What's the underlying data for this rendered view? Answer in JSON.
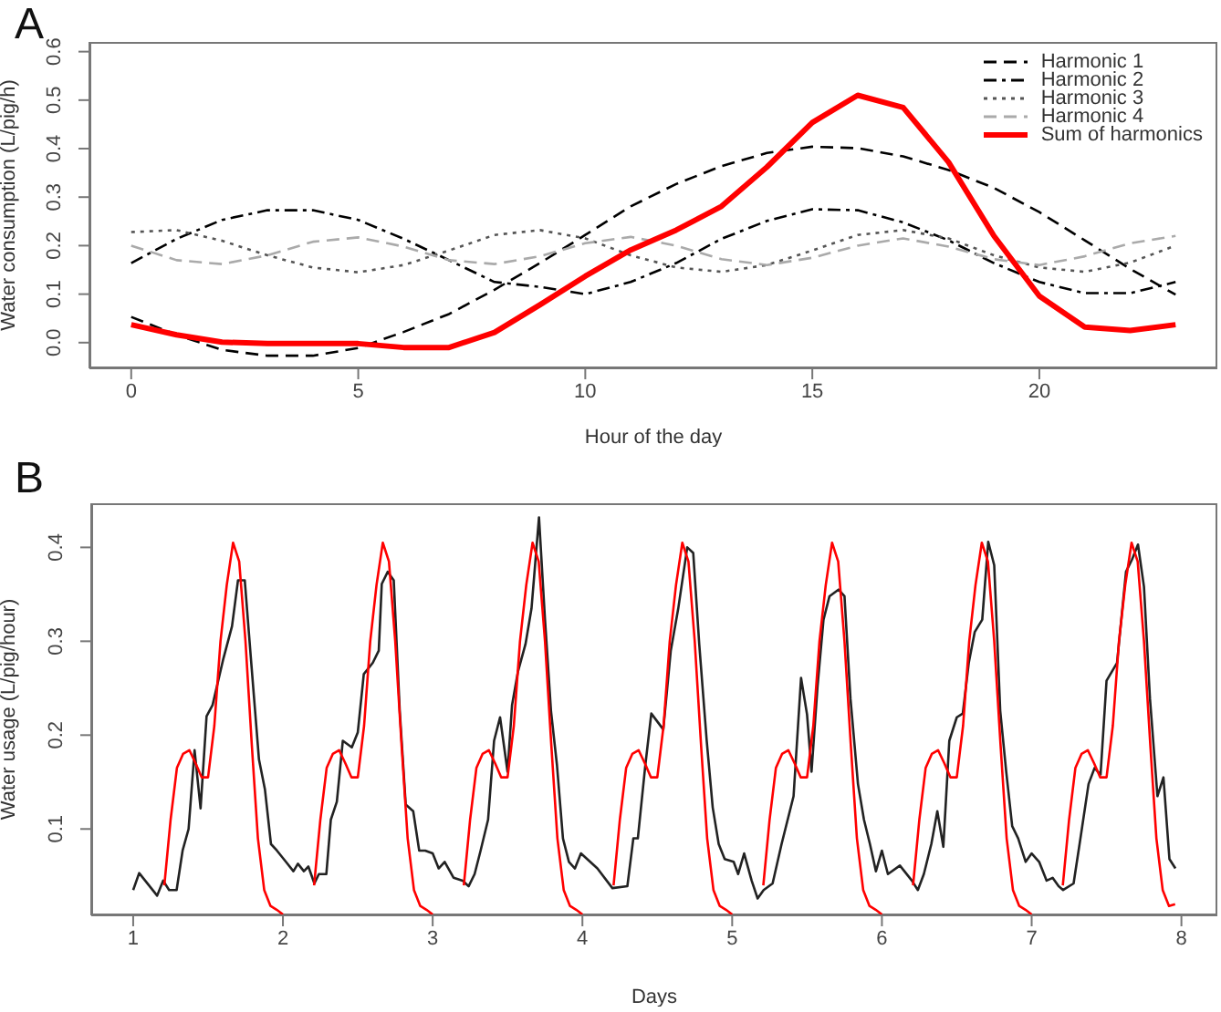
{
  "chart_data": [
    {
      "type": "line",
      "title": "A",
      "xlabel": "Hour of the day",
      "ylabel": "Water consumption (L/pig/h)",
      "x": [
        0,
        1,
        2,
        3,
        4,
        5,
        6,
        7,
        8,
        9,
        10,
        11,
        12,
        13,
        14,
        15,
        16,
        17,
        18,
        19,
        20,
        21,
        22,
        23
      ],
      "xlim": [
        -0.92,
        23.92
      ],
      "xticks": [
        0,
        5,
        10,
        15,
        20
      ],
      "ylim": [
        -0.053,
        0.62
      ],
      "yticks": [
        {
          "value": 0,
          "label": "0.0"
        },
        0.1,
        0.2,
        0.3,
        0.4,
        0.5,
        0.6
      ],
      "legend": "top right",
      "series": [
        {
          "name": "Harmonic 1",
          "color": "#000000",
          "line_style": "dashed",
          "values": [
            0.053,
            0.016,
            -0.015,
            -0.027,
            -0.027,
            -0.011,
            0.022,
            0.059,
            0.109,
            0.164,
            0.222,
            0.281,
            0.327,
            0.364,
            0.391,
            0.404,
            0.401,
            0.384,
            0.356,
            0.319,
            0.269,
            0.211,
            0.152,
            0.099
          ]
        },
        {
          "name": "Harmonic 2",
          "color": "#000000",
          "line_style": "dashdot",
          "values": [
            0.164,
            0.214,
            0.253,
            0.273,
            0.273,
            0.253,
            0.214,
            0.17,
            0.125,
            0.115,
            0.1,
            0.125,
            0.164,
            0.214,
            0.251,
            0.275,
            0.273,
            0.248,
            0.211,
            0.164,
            0.125,
            0.102,
            0.102,
            0.125
          ]
        },
        {
          "name": "Harmonic 3",
          "color": "#555555",
          "line_style": "dotted",
          "values": [
            0.228,
            0.232,
            0.21,
            0.18,
            0.155,
            0.145,
            0.16,
            0.19,
            0.222,
            0.232,
            0.215,
            0.18,
            0.155,
            0.146,
            0.16,
            0.19,
            0.222,
            0.232,
            0.215,
            0.18,
            0.155,
            0.146,
            0.165,
            0.2
          ]
        },
        {
          "name": "Harmonic 4",
          "color": "#aaaaaa",
          "line_style": "dashed",
          "values": [
            0.2,
            0.17,
            0.162,
            0.18,
            0.208,
            0.217,
            0.198,
            0.17,
            0.162,
            0.178,
            0.205,
            0.218,
            0.2,
            0.172,
            0.16,
            0.175,
            0.2,
            0.215,
            0.198,
            0.172,
            0.16,
            0.178,
            0.205,
            0.22
          ]
        },
        {
          "name": "Sum of harmonics",
          "color": "#ff0000",
          "line_style": "solid",
          "values": [
            0.037,
            0.016,
            0.001,
            -0.002,
            -0.002,
            -0.002,
            -0.01,
            -0.01,
            0.021,
            0.078,
            0.137,
            0.191,
            0.232,
            0.281,
            0.362,
            0.454,
            0.51,
            0.485,
            0.372,
            0.22,
            0.096,
            0.032,
            0.025,
            0.037
          ]
        }
      ]
    },
    {
      "type": "line",
      "title": "B",
      "xlabel": "Days",
      "ylabel": "Water usage (L/pig/hour)",
      "xlim": [
        0.72,
        8.24
      ],
      "xticks": [
        1,
        2,
        3,
        4,
        5,
        6,
        7,
        8
      ],
      "ylim": [
        0.008,
        0.447
      ],
      "yticks": [
        0.1,
        0.2,
        0.3,
        0.4
      ],
      "series": [
        {
          "color": "#222222",
          "line_style": "solid",
          "x": [
            1.0,
            1.04,
            1.16,
            1.2,
            1.24,
            1.29,
            1.33,
            1.37,
            1.41,
            1.45,
            1.49,
            1.53,
            1.6,
            1.66,
            1.7,
            1.745,
            1.785,
            1.84,
            1.88,
            1.92,
            1.96,
            2.02,
            2.07,
            2.1,
            2.14,
            2.17,
            2.21,
            2.24,
            2.29,
            2.32,
            2.36,
            2.4,
            2.46,
            2.5,
            2.54,
            2.6,
            2.64,
            2.66,
            2.7,
            2.74,
            2.78,
            2.82,
            2.87,
            2.91,
            2.95,
            3.0,
            3.04,
            3.08,
            3.14,
            3.2,
            3.24,
            3.28,
            3.32,
            3.37,
            3.41,
            3.45,
            3.5,
            3.53,
            3.57,
            3.62,
            3.66,
            3.71,
            3.75,
            3.79,
            3.83,
            3.87,
            3.91,
            3.95,
            3.99,
            4.1,
            4.2,
            4.3,
            4.34,
            4.37,
            4.42,
            4.46,
            4.54,
            4.59,
            4.64,
            4.7,
            4.74,
            4.78,
            4.83,
            4.87,
            4.91,
            4.95,
            5.01,
            5.04,
            5.08,
            5.13,
            5.17,
            5.21,
            5.27,
            5.33,
            5.41,
            5.46,
            5.5,
            5.53,
            5.57,
            5.61,
            5.65,
            5.71,
            5.75,
            5.79,
            5.84,
            5.88,
            5.92,
            5.96,
            6.0,
            6.04,
            6.12,
            6.2,
            6.24,
            6.28,
            6.33,
            6.37,
            6.41,
            6.45,
            6.5,
            6.54,
            6.58,
            6.62,
            6.67,
            6.71,
            6.75,
            6.79,
            6.83,
            6.87,
            6.91,
            6.96,
            7.0,
            7.05,
            7.1,
            7.14,
            7.18,
            7.21,
            7.28,
            7.32,
            7.38,
            7.42,
            7.46,
            7.5,
            7.57,
            7.63,
            7.67,
            7.71,
            7.75,
            7.79,
            7.84,
            7.88,
            7.92,
            7.96
          ],
          "values": [
            0.035,
            0.053,
            0.029,
            0.045,
            0.035,
            0.035,
            0.077,
            0.1,
            0.184,
            0.122,
            0.22,
            0.232,
            0.28,
            0.316,
            0.365,
            0.365,
            0.284,
            0.174,
            0.142,
            0.084,
            0.077,
            0.065,
            0.055,
            0.063,
            0.055,
            0.06,
            0.042,
            0.052,
            0.052,
            0.11,
            0.129,
            0.194,
            0.187,
            0.203,
            0.265,
            0.277,
            0.29,
            0.361,
            0.374,
            0.365,
            0.226,
            0.126,
            0.119,
            0.077,
            0.077,
            0.074,
            0.058,
            0.065,
            0.048,
            0.045,
            0.039,
            0.052,
            0.077,
            0.11,
            0.194,
            0.219,
            0.161,
            0.232,
            0.268,
            0.297,
            0.335,
            0.432,
            0.323,
            0.226,
            0.168,
            0.09,
            0.065,
            0.058,
            0.074,
            0.058,
            0.037,
            0.039,
            0.09,
            0.09,
            0.168,
            0.223,
            0.206,
            0.29,
            0.335,
            0.4,
            0.394,
            0.297,
            0.194,
            0.123,
            0.084,
            0.068,
            0.065,
            0.052,
            0.074,
            0.045,
            0.026,
            0.035,
            0.042,
            0.084,
            0.135,
            0.261,
            0.222,
            0.161,
            0.252,
            0.323,
            0.348,
            0.355,
            0.348,
            0.239,
            0.148,
            0.11,
            0.084,
            0.055,
            0.077,
            0.052,
            0.061,
            0.045,
            0.035,
            0.052,
            0.084,
            0.119,
            0.081,
            0.194,
            0.219,
            0.223,
            0.277,
            0.31,
            0.323,
            0.406,
            0.381,
            0.226,
            0.161,
            0.103,
            0.09,
            0.065,
            0.074,
            0.065,
            0.045,
            0.048,
            0.039,
            0.035,
            0.042,
            0.084,
            0.148,
            0.165,
            0.158,
            0.258,
            0.277,
            0.374,
            0.387,
            0.403,
            0.358,
            0.239,
            0.135,
            0.155,
            0.068,
            0.058
          ]
        },
        {
          "color": "#ff0000",
          "line_style": "solid",
          "x": [
            1.208,
            1.25,
            1.292,
            1.333,
            1.375,
            1.417,
            1.458,
            1.5,
            1.542,
            1.583,
            1.625,
            1.667,
            1.708,
            1.75,
            1.792,
            1.833,
            1.875,
            1.917,
            1.958,
            2,
            2.125,
            2.208,
            2.25,
            2.292,
            2.333,
            2.375,
            2.417,
            2.458,
            2.5,
            2.542,
            2.583,
            2.625,
            2.667,
            2.708,
            2.75,
            2.792,
            2.833,
            2.875,
            2.917,
            2.958,
            3,
            3.125,
            3.208,
            3.25,
            3.292,
            3.333,
            3.375,
            3.417,
            3.458,
            3.5,
            3.542,
            3.583,
            3.625,
            3.667,
            3.708,
            3.75,
            3.792,
            3.833,
            3.875,
            3.917,
            3.958,
            4,
            4.125,
            4.208,
            4.25,
            4.292,
            4.333,
            4.375,
            4.417,
            4.458,
            4.5,
            4.542,
            4.583,
            4.625,
            4.667,
            4.708,
            4.75,
            4.792,
            4.833,
            4.875,
            4.917,
            4.958,
            5,
            5.125,
            5.208,
            5.25,
            5.292,
            5.333,
            5.375,
            5.417,
            5.458,
            5.5,
            5.542,
            5.583,
            5.625,
            5.667,
            5.708,
            5.75,
            5.792,
            5.833,
            5.875,
            5.917,
            5.958,
            6,
            6.125,
            6.208,
            6.25,
            6.292,
            6.333,
            6.375,
            6.417,
            6.458,
            6.5,
            6.542,
            6.583,
            6.625,
            6.667,
            6.708,
            6.75,
            6.792,
            6.833,
            6.875,
            6.917,
            6.958,
            7,
            7.125,
            7.208,
            7.25,
            7.292,
            7.333,
            7.375,
            7.417,
            7.458,
            7.5,
            7.542,
            7.583,
            7.625,
            7.667,
            7.708,
            7.75,
            7.792,
            7.833,
            7.875,
            7.917,
            7.958
          ],
          "values": [
            0.04,
            0.11,
            0.165,
            0.18,
            0.184,
            0.17,
            0.155,
            0.155,
            0.21,
            0.3,
            0.36,
            0.405,
            0.385,
            0.3,
            0.19,
            0.09,
            0.035,
            0.018,
            0.014,
            0.009,
            null,
            0.04,
            0.11,
            0.165,
            0.18,
            0.184,
            0.17,
            0.155,
            0.155,
            0.21,
            0.3,
            0.36,
            0.405,
            0.385,
            0.3,
            0.19,
            0.09,
            0.035,
            0.018,
            0.014,
            0.009,
            null,
            0.04,
            0.11,
            0.165,
            0.18,
            0.184,
            0.17,
            0.155,
            0.155,
            0.21,
            0.3,
            0.36,
            0.405,
            0.385,
            0.3,
            0.19,
            0.09,
            0.035,
            0.018,
            0.014,
            0.009,
            null,
            0.04,
            0.11,
            0.165,
            0.18,
            0.184,
            0.17,
            0.155,
            0.155,
            0.21,
            0.3,
            0.36,
            0.405,
            0.385,
            0.3,
            0.19,
            0.09,
            0.035,
            0.018,
            0.014,
            0.009,
            null,
            0.04,
            0.11,
            0.165,
            0.18,
            0.184,
            0.17,
            0.155,
            0.155,
            0.21,
            0.3,
            0.36,
            0.405,
            0.385,
            0.3,
            0.19,
            0.09,
            0.035,
            0.018,
            0.014,
            0.009,
            null,
            0.04,
            0.11,
            0.165,
            0.18,
            0.184,
            0.17,
            0.155,
            0.155,
            0.21,
            0.3,
            0.36,
            0.405,
            0.385,
            0.3,
            0.19,
            0.09,
            0.035,
            0.018,
            0.014,
            0.009,
            null,
            0.04,
            0.11,
            0.165,
            0.18,
            0.184,
            0.17,
            0.155,
            0.155,
            0.21,
            0.3,
            0.36,
            0.405,
            0.385,
            0.3,
            0.19,
            0.09,
            0.035,
            0.018,
            0.02
          ]
        }
      ]
    }
  ]
}
